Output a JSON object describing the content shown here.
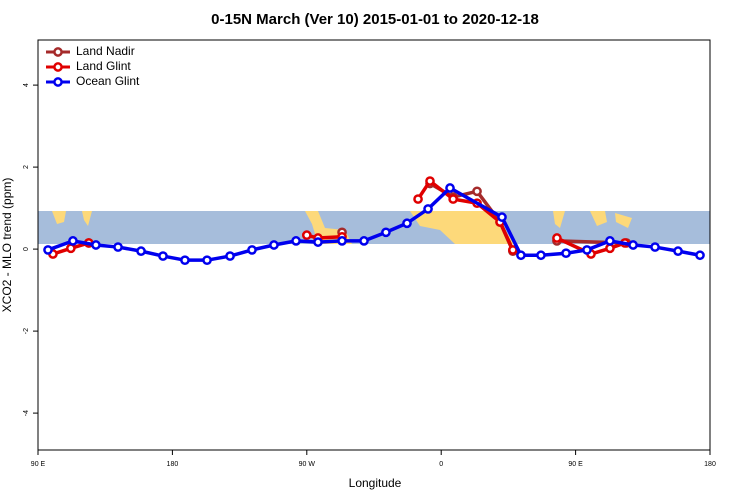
{
  "chart_data": {
    "type": "line",
    "title": "0-15N March (Ver 10)   2015-01-01 to 2020-12-18",
    "x_label": "Longitude",
    "y_label": "XCO2 - MLO trend (ppm)",
    "xlim": [
      90,
      540
    ],
    "xticks": [
      {
        "value": 90,
        "label": "90 E"
      },
      {
        "value": 180,
        "label": "180"
      },
      {
        "value": 270,
        "label": "90 W"
      },
      {
        "value": 360,
        "label": "0"
      },
      {
        "value": 450,
        "label": "90 E"
      },
      {
        "value": 540,
        "label": "180"
      }
    ],
    "ylim": [
      -4.9,
      5.1
    ],
    "yticks": [
      -4,
      -2,
      0,
      2,
      4
    ],
    "legend": "top-left",
    "series": [
      {
        "name": "Land Nadir",
        "color": "#a52a2a",
        "x": [
          124,
          270,
          293.6,
          300,
          352.5,
          368,
          384,
          399.4,
          408,
          420,
          437.5,
          484
        ],
        "values": [
          0.15,
          null,
          0.41,
          null,
          1.6,
          1.27,
          1.41,
          0.66,
          -0.05,
          null,
          0.2,
          0.15
        ]
      },
      {
        "name": "Land Glint",
        "color": "#e00000",
        "x": [
          100,
          112,
          124,
          200,
          270,
          277.5,
          293.6,
          320,
          344.5,
          352.5,
          368,
          384,
          399.4,
          408,
          420,
          437.5,
          460.3,
          473,
          483
        ],
        "values": [
          -0.12,
          0.02,
          0.15,
          null,
          0.34,
          0.27,
          0.3,
          null,
          1.22,
          1.66,
          1.22,
          1.12,
          0.66,
          -0.02,
          null,
          0.27,
          -0.12,
          0.02,
          0.15
        ]
      },
      {
        "name": "Ocean Glint",
        "color": "#0000ee",
        "x": [
          96.7,
          113.4,
          128.8,
          143.6,
          159,
          173.7,
          188.4,
          203.2,
          218.6,
          233.3,
          248,
          262.8,
          277.5,
          293.6,
          308.3,
          323,
          337.1,
          351.2,
          365.9,
          400.7,
          413.4,
          426.8,
          443.6,
          457.6,
          473,
          488.5,
          503.2,
          518.6,
          533.3
        ],
        "values": [
          -0.02,
          0.2,
          0.1,
          0.05,
          -0.05,
          -0.17,
          -0.27,
          -0.27,
          -0.17,
          -0.02,
          0.1,
          0.2,
          0.17,
          0.2,
          0.2,
          0.41,
          0.63,
          0.98,
          1.49,
          0.78,
          -0.15,
          -0.15,
          -0.1,
          -0.02,
          0.2,
          0.1,
          0.05,
          -0.05,
          -0.15
        ]
      }
    ]
  }
}
